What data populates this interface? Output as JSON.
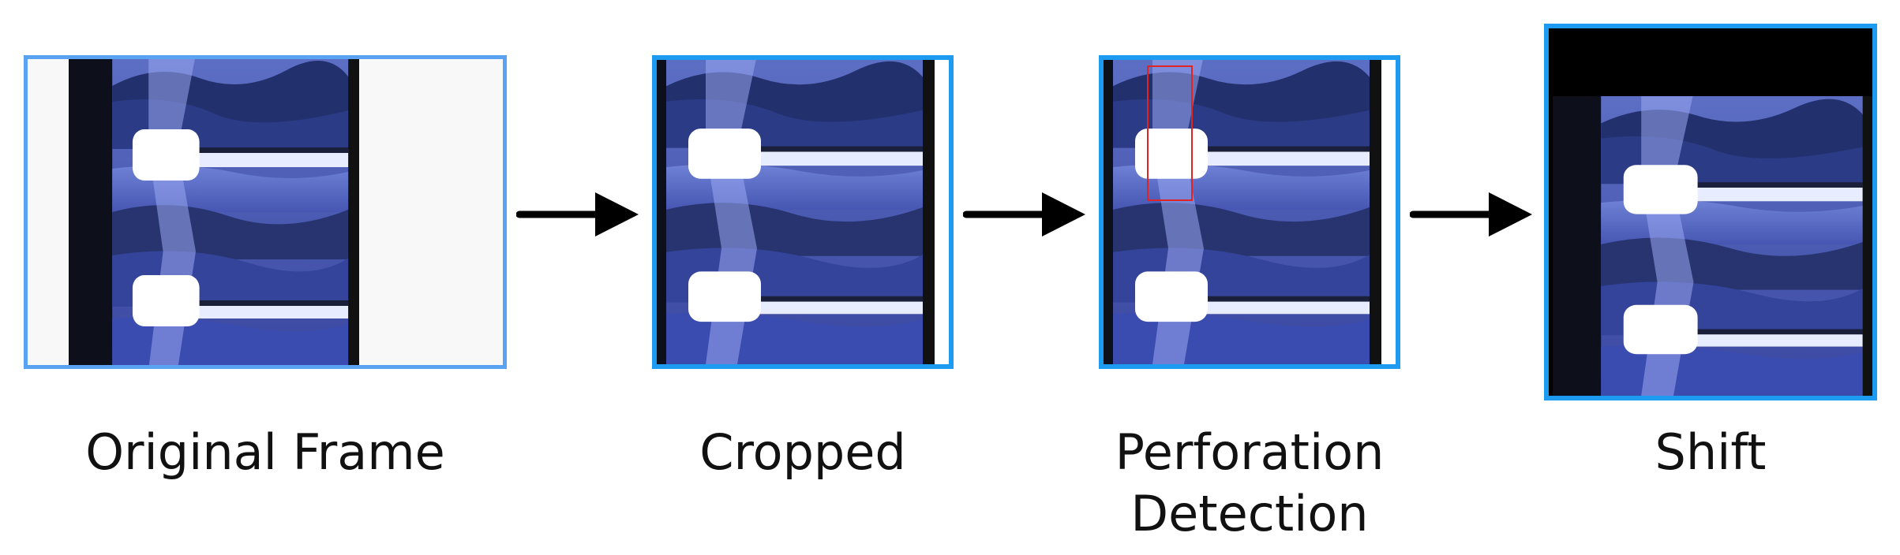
{
  "colors": {
    "frame_border_light": "#5aa2f2",
    "frame_border_bright": "#1d9bf0",
    "detection_box": "#e02424",
    "arrow": "#000000"
  },
  "stages": [
    {
      "caption": "Original Frame"
    },
    {
      "caption": "Cropped"
    },
    {
      "caption": "Perforation",
      "caption_line2": "Detection"
    },
    {
      "caption": "Shift"
    }
  ],
  "arrows": [
    {
      "icon": "right-arrow-icon"
    },
    {
      "icon": "right-arrow-icon"
    },
    {
      "icon": "right-arrow-icon"
    }
  ]
}
